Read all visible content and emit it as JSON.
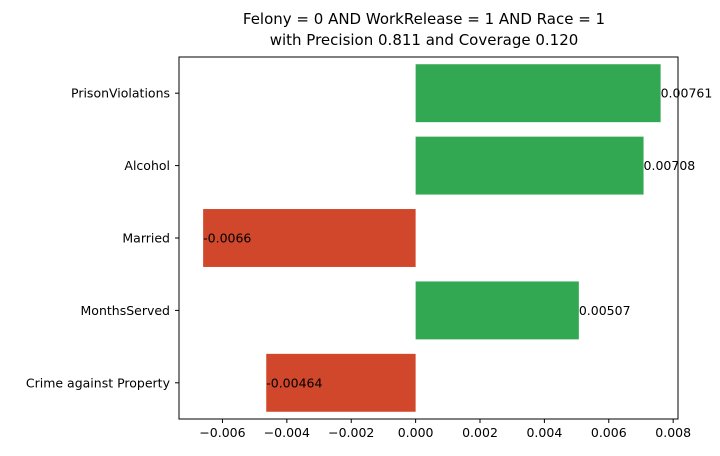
{
  "chart_data": {
    "type": "bar",
    "orientation": "horizontal",
    "title": [
      "Felony = 0 AND WorkRelease = 1 AND Race = 1",
      "with Precision 0.811 and Coverage 0.120"
    ],
    "xlabel": "",
    "ylabel": "",
    "categories": [
      "PrisonViolations",
      "Alcohol",
      "Married",
      "MonthsServed",
      "Crime against Property"
    ],
    "values": [
      0.00761,
      0.00708,
      -0.0066,
      0.00507,
      -0.00464
    ],
    "data_labels": [
      "0.00761",
      "0.00708",
      "-0.0066",
      "0.00507",
      "-0.00464"
    ],
    "xlim": [
      -0.00735,
      0.00815
    ],
    "xticks": [
      -0.006,
      -0.004,
      -0.002,
      0.0,
      0.002,
      0.004,
      0.006,
      0.008
    ],
    "xtick_labels": [
      "−0.006",
      "−0.004",
      "−0.002",
      "0.000",
      "0.002",
      "0.004",
      "0.006",
      "0.008"
    ],
    "grid": false,
    "legend": "none",
    "colors": {
      "positive": "#33a852",
      "negative": "#d0472b"
    }
  }
}
